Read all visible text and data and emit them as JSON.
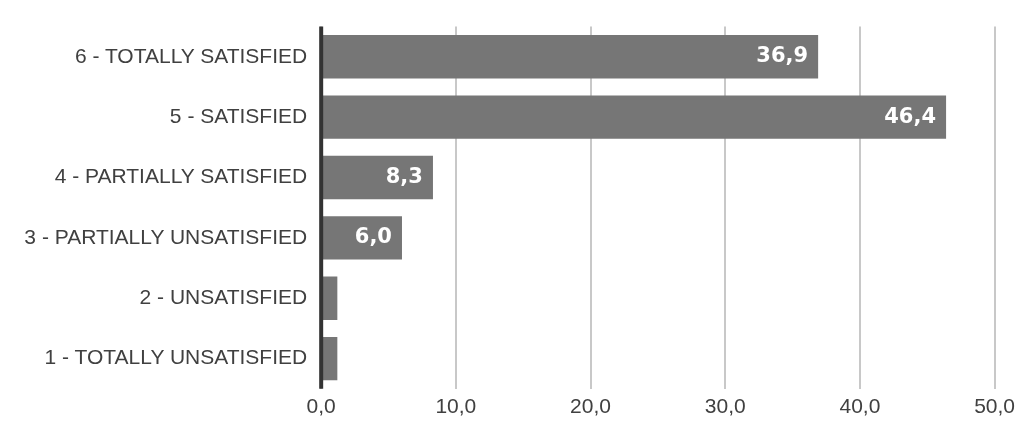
{
  "chart_data": {
    "type": "bar",
    "orientation": "horizontal",
    "categories": [
      "6 - TOTALLY SATISFIED",
      "5 - SATISFIED",
      "4 - PARTIALLY SATISFIED",
      "3 - PARTIALLY UNSATISFIED",
      "2 - UNSATISFIED",
      "1 - TOTALLY UNSATISFIED"
    ],
    "values": [
      36.9,
      46.4,
      8.3,
      6.0,
      1.2,
      1.2
    ],
    "value_labels": [
      "36,9",
      "46,4",
      "8,3",
      "6,0",
      null,
      null
    ],
    "color": "#767676",
    "xlim": [
      0,
      50
    ],
    "xticks": [
      {
        "value": 0,
        "label": "0,0"
      },
      {
        "value": 10,
        "label": "10,0"
      },
      {
        "value": 20,
        "label": "20,0"
      },
      {
        "value": 30,
        "label": "30,0"
      },
      {
        "value": 40,
        "label": "40,0"
      },
      {
        "value": 50,
        "label": "50,0"
      }
    ],
    "grid": "x",
    "legend": false
  }
}
